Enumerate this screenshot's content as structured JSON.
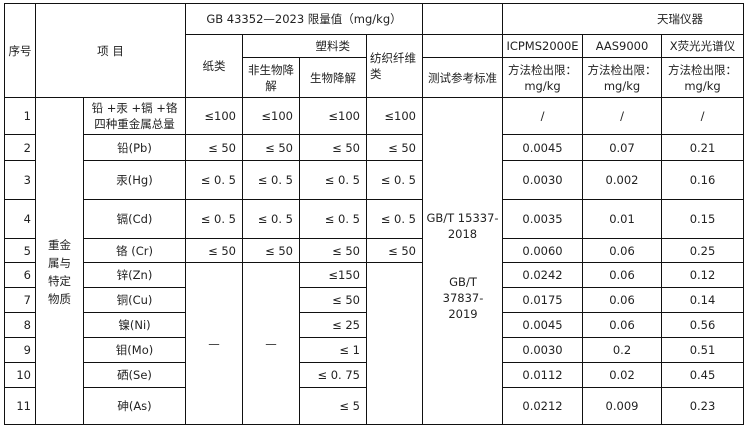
{
  "header": {
    "seq": "序号",
    "item": "项 目",
    "limit_title": "GB 43352—2023 限量值（mg/kg）",
    "paper": "纸类",
    "plastic": "塑料类",
    "non_bio": "非生物降解",
    "bio": "生物降解",
    "textile": "纺织纤维类",
    "test_std": "测试参考标准",
    "vendor": "天瑞仪器",
    "instruments": [
      "ICPMS2000E",
      "AAS9000",
      "X荧光光谱仪"
    ],
    "method_limit": "方法检出限：mg/kg"
  },
  "category": "重金属与特定物质",
  "standards": [
    "GB/T 15337-2018",
    "GB/T 37837-2019"
  ],
  "dash": "—",
  "rows": [
    {
      "no": "1",
      "item": "铅 +汞 +镉 +铬 四种重金属总量",
      "paper": "≤100",
      "non_bio": "≤100",
      "bio": "≤100",
      "textile": "≤100",
      "icpms": "/",
      "aas": "/",
      "xrf": "/"
    },
    {
      "no": "2",
      "item": "铅(Pb)",
      "paper": "≤ 50",
      "non_bio": "≤ 50",
      "bio": "≤ 50",
      "textile": "≤ 50",
      "icpms": "0.0045",
      "aas": "0.07",
      "xrf": "0.21"
    },
    {
      "no": "3",
      "item": "汞(Hg)",
      "paper": "≤ 0. 5",
      "non_bio": "≤ 0. 5",
      "bio": "≤ 0. 5",
      "textile": "≤ 0. 5",
      "icpms": "0.0030",
      "aas": "0.002",
      "xrf": "0.16"
    },
    {
      "no": "4",
      "item": "镉(Cd)",
      "paper": "≤ 0. 5",
      "non_bio": "≤ 0. 5",
      "bio": "≤ 0. 5",
      "textile": "≤ 0. 5",
      "icpms": "0.0035",
      "aas": "0.01",
      "xrf": "0.15"
    },
    {
      "no": "5",
      "item": "铬 (Cr)",
      "paper": "≤ 50",
      "non_bio": "≤ 50",
      "bio": "≤ 50",
      "textile": "≤ 50",
      "icpms": "0.0060",
      "aas": "0.06",
      "xrf": "0.25"
    },
    {
      "no": "6",
      "item": "锌(Zn)",
      "bio": "≤150",
      "icpms": "0.0242",
      "aas": "0.06",
      "xrf": "0.12"
    },
    {
      "no": "7",
      "item": "铜(Cu)",
      "bio": "≤ 50",
      "icpms": "0.0175",
      "aas": "0.06",
      "xrf": "0.14"
    },
    {
      "no": "8",
      "item": "镍(Ni)",
      "bio": "≤ 25",
      "icpms": "0.0045",
      "aas": "0.06",
      "xrf": "0.56"
    },
    {
      "no": "9",
      "item": "钼(Mo)",
      "bio": "≤ 1",
      "icpms": "0.0030",
      "aas": "0.2",
      "xrf": "0.51"
    },
    {
      "no": "10",
      "item": "硒(Se)",
      "bio": "≤ 0. 75",
      "icpms": "0.0112",
      "aas": "0.02",
      "xrf": "0.45"
    },
    {
      "no": "11",
      "item": "砷(As)",
      "bio": "≤ 5",
      "icpms": "0.0212",
      "aas": "0.009",
      "xrf": "0.23"
    }
  ]
}
